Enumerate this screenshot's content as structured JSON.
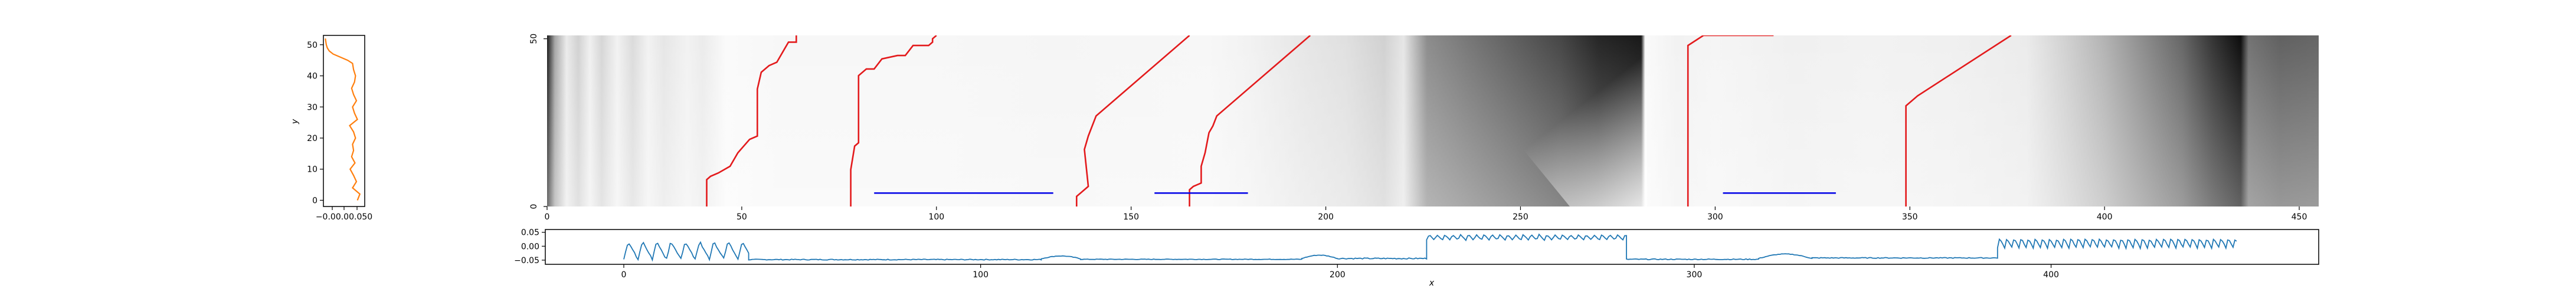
{
  "chart_data": [
    {
      "id": "left_panel",
      "type": "line",
      "xlabel": "",
      "ylabel": "y",
      "xticks": [
        "−0.04",
        "0.00",
        "0.05"
      ],
      "xtick_labels_as_rendered": "−0.00.00.050",
      "ylim": [
        -2,
        53
      ],
      "yticks": [
        0,
        10,
        20,
        30,
        40,
        50
      ],
      "series": [
        {
          "color": "#ff7f0e",
          "y": [
            0,
            2,
            4,
            6,
            8,
            10,
            12,
            14,
            16,
            18,
            20,
            22,
            24,
            26,
            28,
            30,
            32,
            34,
            36,
            38,
            40,
            42,
            44,
            45,
            46,
            47,
            48,
            49,
            50,
            51,
            52
          ],
          "x": [
            0.02,
            0.025,
            0.01,
            0.018,
            0.012,
            0.005,
            0.015,
            0.008,
            0.012,
            0.01,
            0.016,
            0.012,
            0.004,
            0.02,
            0.014,
            0.01,
            0.018,
            0.012,
            0.008,
            0.014,
            0.016,
            0.012,
            0.01,
            0.0,
            -0.015,
            -0.03,
            -0.038,
            -0.042,
            -0.044,
            -0.045,
            -0.046
          ]
        }
      ]
    },
    {
      "id": "main_heatmap",
      "type": "heatmap",
      "colormap": "gray_r",
      "xlim": [
        0,
        455
      ],
      "ylim": [
        0,
        51
      ],
      "xticks": [
        0,
        50,
        100,
        150,
        200,
        250,
        300,
        350,
        400,
        450
      ],
      "yticks": [
        0,
        50
      ],
      "intensity_columns": [
        [
          0,
          0.9
        ],
        [
          2,
          0.35
        ],
        [
          5,
          0.08
        ],
        [
          8,
          0.18
        ],
        [
          11,
          0.06
        ],
        [
          14,
          0.16
        ],
        [
          18,
          0.05
        ],
        [
          22,
          0.14
        ],
        [
          26,
          0.05
        ],
        [
          30,
          0.1
        ],
        [
          36,
          0.05
        ],
        [
          40,
          0.08
        ],
        [
          46,
          0.02
        ],
        [
          60,
          0.03
        ],
        [
          100,
          0.03
        ],
        [
          130,
          0.04
        ],
        [
          170,
          0.03
        ],
        [
          180,
          0.05
        ],
        [
          195,
          0.1
        ],
        [
          205,
          0.12
        ],
        [
          215,
          0.18
        ],
        [
          220,
          0.1
        ],
        [
          226,
          0.45
        ],
        [
          245,
          0.6
        ],
        [
          260,
          0.72
        ],
        [
          270,
          0.85
        ],
        [
          281,
          0.9
        ],
        [
          282,
          0.02
        ],
        [
          290,
          0.05
        ],
        [
          300,
          0.04
        ],
        [
          320,
          0.06
        ],
        [
          340,
          0.05
        ],
        [
          360,
          0.06
        ],
        [
          380,
          0.08
        ],
        [
          390,
          0.18
        ],
        [
          400,
          0.3
        ],
        [
          410,
          0.45
        ],
        [
          420,
          0.6
        ],
        [
          428,
          0.8
        ],
        [
          435,
          0.95
        ],
        [
          437,
          0.55
        ],
        [
          445,
          0.62
        ],
        [
          455,
          0.6
        ]
      ],
      "red_lines": [
        {
          "x": [
            41,
            41,
            42,
            44,
            47,
            49,
            52,
            54,
            54,
            55,
            57,
            59,
            61,
            62,
            64,
            64
          ],
          "y": [
            0,
            8,
            9,
            10,
            12,
            16,
            20,
            21,
            35,
            40,
            42,
            43,
            47,
            49,
            49,
            51
          ]
        },
        {
          "x": [
            78,
            78,
            79,
            80,
            80,
            82,
            84,
            86,
            90,
            92,
            94,
            95,
            98,
            99,
            99,
            100
          ],
          "y": [
            0,
            11,
            18,
            19,
            39,
            41,
            41,
            44,
            45,
            45,
            48,
            48,
            48,
            49,
            50,
            51
          ]
        },
        {
          "x": [
            136,
            136,
            137,
            139,
            138,
            139,
            140,
            141,
            165
          ],
          "y": [
            0,
            3,
            4,
            6,
            17,
            21,
            24,
            27,
            51
          ]
        },
        {
          "x": [
            165,
            165,
            166,
            168,
            168,
            169,
            170,
            171,
            172,
            196
          ],
          "y": [
            0,
            5,
            6,
            7,
            12,
            16,
            22,
            24,
            27,
            51
          ]
        },
        {
          "x": [
            293,
            293,
            297,
            315
          ],
          "y": [
            0,
            48,
            51,
            51
          ]
        },
        {
          "x": [
            349,
            349,
            352,
            376
          ],
          "y": [
            0,
            30,
            33,
            51
          ]
        }
      ],
      "blue_lines": [
        {
          "x": [
            84,
            130
          ],
          "y": [
            4,
            4
          ]
        },
        {
          "x": [
            156,
            180
          ],
          "y": [
            4,
            4
          ]
        },
        {
          "x": [
            302,
            331
          ],
          "y": [
            4,
            4
          ]
        }
      ]
    },
    {
      "id": "bottom_signal",
      "type": "line",
      "xlabel": "x",
      "ylabel": "",
      "xlim": [
        -22,
        475
      ],
      "ylim": [
        -0.065,
        0.06
      ],
      "xticks": [
        0,
        100,
        200,
        300,
        400
      ],
      "yticks": [
        -0.05,
        0.0,
        0.05
      ],
      "ytick_labels": [
        "−0.05",
        "0.00",
        "0.05"
      ],
      "series": [
        {
          "color": "#1f77b4",
          "segments": [
            {
              "type": "osc",
              "x0": 0,
              "x1": 35,
              "amp": 0.038,
              "base": -0.015,
              "period": 4.0
            },
            {
              "type": "flat",
              "x0": 35,
              "x1": 117,
              "base": -0.048,
              "noise": 0.003
            },
            {
              "type": "bump",
              "x0": 117,
              "x1": 128,
              "base": -0.045,
              "peak": -0.035
            },
            {
              "type": "flat",
              "x0": 128,
              "x1": 190,
              "base": -0.047,
              "noise": 0.002
            },
            {
              "type": "bump",
              "x0": 190,
              "x1": 200,
              "base": -0.044,
              "peak": -0.032
            },
            {
              "type": "flat",
              "x0": 200,
              "x1": 225,
              "base": -0.044,
              "noise": 0.004
            },
            {
              "type": "osc",
              "x0": 225,
              "x1": 281,
              "amp": 0.012,
              "base": 0.032,
              "period": 2.2
            },
            {
              "type": "flat",
              "x0": 281,
              "x1": 318,
              "base": -0.047,
              "noise": 0.003
            },
            {
              "type": "bump",
              "x0": 318,
              "x1": 333,
              "base": -0.044,
              "peak": -0.028
            },
            {
              "type": "flat",
              "x0": 333,
              "x1": 385,
              "base": -0.042,
              "noise": 0.003
            },
            {
              "type": "osc",
              "x0": 385,
              "x1": 452,
              "amp": 0.02,
              "base": 0.012,
              "period": 2.0
            }
          ]
        }
      ]
    }
  ]
}
